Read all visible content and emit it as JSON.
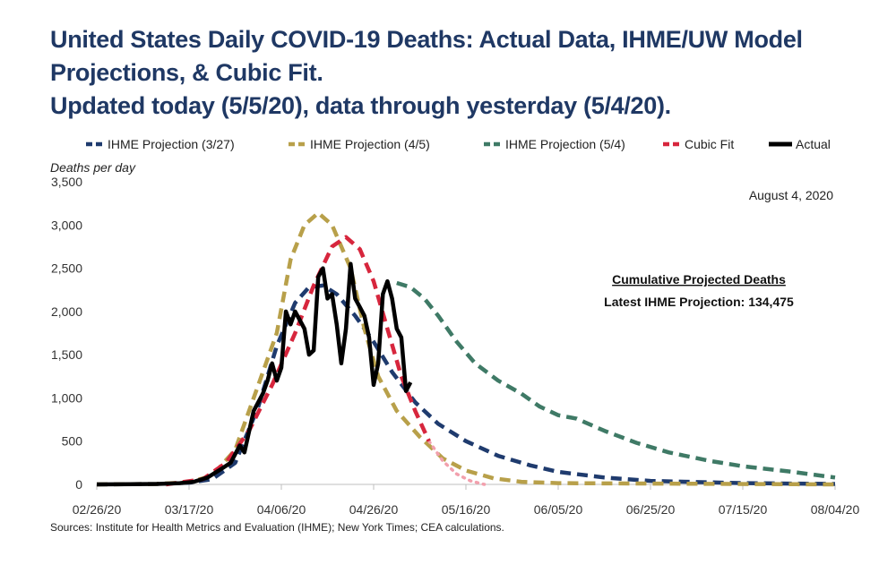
{
  "title_lines": [
    "United States Daily COVID-19 Deaths: Actual Data, IHME/UW Model",
    "Projections, & Cubic Fit.",
    "Updated today (5/5/20), data through yesterday (5/4/20)."
  ],
  "source": "Sources: Institute for Health Metrics and Evaluation (IHME); New York Times; CEA calculations.",
  "date_note": "August 4, 2020",
  "annotation": {
    "heading": "Cumulative Projected Deaths",
    "text": "Latest IHME Projection: 134,475"
  },
  "colors": {
    "ihme_327": "#1f3b6e",
    "ihme_45": "#b8a04a",
    "ihme_54": "#3f7a66",
    "cubic": "#d7263d",
    "cubic_faded": "#f2a0ad",
    "actual": "#000000",
    "title": "#1f3864"
  },
  "chart_data": {
    "type": "line",
    "ylabel": "Deaths per day",
    "ylim": [
      0,
      3500
    ],
    "xlim": [
      "2020-02-26",
      "2020-08-04"
    ],
    "yticks": [
      {
        "value": 0,
        "label": "0"
      },
      {
        "value": 500,
        "label": "500"
      },
      {
        "value": 1000,
        "label": "1,000"
      },
      {
        "value": 1500,
        "label": "1,500"
      },
      {
        "value": 2000,
        "label": "2,000"
      },
      {
        "value": 2500,
        "label": "2,500"
      },
      {
        "value": 3000,
        "label": "3,000"
      },
      {
        "value": 3500,
        "label": "3,500"
      }
    ],
    "xticks": [
      {
        "value": "2020-02-26",
        "label": "02/26/20"
      },
      {
        "value": "2020-03-17",
        "label": "03/17/20"
      },
      {
        "value": "2020-04-06",
        "label": "04/06/20"
      },
      {
        "value": "2020-04-26",
        "label": "04/26/20"
      },
      {
        "value": "2020-05-16",
        "label": "05/16/20"
      },
      {
        "value": "2020-06-05",
        "label": "06/05/20"
      },
      {
        "value": "2020-06-25",
        "label": "06/25/20"
      },
      {
        "value": "2020-07-15",
        "label": "07/15/20"
      },
      {
        "value": "2020-08-04",
        "label": "08/04/20"
      }
    ],
    "legend_position": "top",
    "grid": false,
    "series": [
      {
        "name": "IHME Projection (3/27)",
        "key": "ihme_327",
        "style": "dashed",
        "points": [
          [
            "2020-02-26",
            0
          ],
          [
            "2020-03-10",
            5
          ],
          [
            "2020-03-17",
            20
          ],
          [
            "2020-03-22",
            60
          ],
          [
            "2020-03-27",
            250
          ],
          [
            "2020-04-01",
            900
          ],
          [
            "2020-04-05",
            1600
          ],
          [
            "2020-04-09",
            2100
          ],
          [
            "2020-04-12",
            2280
          ],
          [
            "2020-04-15",
            2300
          ],
          [
            "2020-04-18",
            2200
          ],
          [
            "2020-04-22",
            1950
          ],
          [
            "2020-04-26",
            1650
          ],
          [
            "2020-04-30",
            1300
          ],
          [
            "2020-05-05",
            950
          ],
          [
            "2020-05-10",
            700
          ],
          [
            "2020-05-16",
            500
          ],
          [
            "2020-05-23",
            330
          ],
          [
            "2020-05-30",
            220
          ],
          [
            "2020-06-05",
            145
          ],
          [
            "2020-06-15",
            80
          ],
          [
            "2020-06-25",
            40
          ],
          [
            "2020-07-15",
            15
          ],
          [
            "2020-08-04",
            5
          ]
        ]
      },
      {
        "name": "IHME Projection (4/5)",
        "key": "ihme_45",
        "style": "dashed",
        "points": [
          [
            "2020-02-26",
            0
          ],
          [
            "2020-03-10",
            5
          ],
          [
            "2020-03-17",
            25
          ],
          [
            "2020-03-22",
            100
          ],
          [
            "2020-03-27",
            400
          ],
          [
            "2020-04-01",
            1150
          ],
          [
            "2020-04-05",
            1750
          ],
          [
            "2020-04-08",
            2600
          ],
          [
            "2020-04-11",
            3000
          ],
          [
            "2020-04-14",
            3140
          ],
          [
            "2020-04-17",
            3000
          ],
          [
            "2020-04-21",
            2500
          ],
          [
            "2020-04-24",
            1800
          ],
          [
            "2020-04-27",
            1250
          ],
          [
            "2020-05-01",
            850
          ],
          [
            "2020-05-06",
            550
          ],
          [
            "2020-05-11",
            300
          ],
          [
            "2020-05-16",
            160
          ],
          [
            "2020-05-22",
            70
          ],
          [
            "2020-05-28",
            30
          ],
          [
            "2020-06-05",
            15
          ],
          [
            "2020-08-04",
            0
          ]
        ]
      },
      {
        "name": "IHME Projection (5/4)",
        "key": "ihme_54",
        "style": "dashed",
        "points": [
          [
            "2020-05-01",
            2330
          ],
          [
            "2020-05-04",
            2280
          ],
          [
            "2020-05-07",
            2150
          ],
          [
            "2020-05-10",
            1950
          ],
          [
            "2020-05-14",
            1650
          ],
          [
            "2020-05-18",
            1400
          ],
          [
            "2020-05-23",
            1200
          ],
          [
            "2020-05-28",
            1050
          ],
          [
            "2020-06-01",
            900
          ],
          [
            "2020-06-05",
            800
          ],
          [
            "2020-06-09",
            760
          ],
          [
            "2020-06-15",
            620
          ],
          [
            "2020-06-22",
            480
          ],
          [
            "2020-06-29",
            370
          ],
          [
            "2020-07-08",
            270
          ],
          [
            "2020-07-15",
            210
          ],
          [
            "2020-07-25",
            150
          ],
          [
            "2020-08-04",
            80
          ]
        ]
      },
      {
        "name": "Cubic Fit",
        "key": "cubic",
        "style": "dashed",
        "points": [
          [
            "2020-03-12",
            0
          ],
          [
            "2020-03-20",
            60
          ],
          [
            "2020-03-25",
            250
          ],
          [
            "2020-03-30",
            620
          ],
          [
            "2020-04-04",
            1150
          ],
          [
            "2020-04-09",
            1750
          ],
          [
            "2020-04-13",
            2300
          ],
          [
            "2020-04-17",
            2750
          ],
          [
            "2020-04-20",
            2860
          ],
          [
            "2020-04-23",
            2720
          ],
          [
            "2020-04-26",
            2350
          ],
          [
            "2020-04-29",
            1800
          ],
          [
            "2020-05-02",
            1250
          ],
          [
            "2020-05-05",
            850
          ],
          [
            "2020-05-08",
            500
          ]
        ],
        "extension": [
          [
            "2020-05-08",
            500
          ],
          [
            "2020-05-11",
            270
          ],
          [
            "2020-05-14",
            120
          ],
          [
            "2020-05-17",
            40
          ],
          [
            "2020-05-20",
            0
          ]
        ]
      },
      {
        "name": "Actual",
        "key": "actual",
        "style": "solid",
        "points": [
          [
            "2020-02-26",
            0
          ],
          [
            "2020-03-05",
            2
          ],
          [
            "2020-03-10",
            5
          ],
          [
            "2020-03-15",
            15
          ],
          [
            "2020-03-18",
            30
          ],
          [
            "2020-03-21",
            80
          ],
          [
            "2020-03-24",
            180
          ],
          [
            "2020-03-26",
            250
          ],
          [
            "2020-03-28",
            450
          ],
          [
            "2020-03-29",
            370
          ],
          [
            "2020-03-31",
            850
          ],
          [
            "2020-04-02",
            1050
          ],
          [
            "2020-04-03",
            1200
          ],
          [
            "2020-04-04",
            1400
          ],
          [
            "2020-04-05",
            1200
          ],
          [
            "2020-04-06",
            1350
          ],
          [
            "2020-04-07",
            2000
          ],
          [
            "2020-04-08",
            1850
          ],
          [
            "2020-04-09",
            2000
          ],
          [
            "2020-04-10",
            1900
          ],
          [
            "2020-04-11",
            1800
          ],
          [
            "2020-04-12",
            1500
          ],
          [
            "2020-04-13",
            1550
          ],
          [
            "2020-04-14",
            2400
          ],
          [
            "2020-04-15",
            2500
          ],
          [
            "2020-04-16",
            2150
          ],
          [
            "2020-04-17",
            2200
          ],
          [
            "2020-04-18",
            1850
          ],
          [
            "2020-04-19",
            1400
          ],
          [
            "2020-04-20",
            1800
          ],
          [
            "2020-04-21",
            2550
          ],
          [
            "2020-04-22",
            2150
          ],
          [
            "2020-04-23",
            2050
          ],
          [
            "2020-04-24",
            1950
          ],
          [
            "2020-04-25",
            1700
          ],
          [
            "2020-04-26",
            1150
          ],
          [
            "2020-04-27",
            1400
          ],
          [
            "2020-04-28",
            2200
          ],
          [
            "2020-04-29",
            2350
          ],
          [
            "2020-04-30",
            2150
          ],
          [
            "2020-05-01",
            1800
          ],
          [
            "2020-05-02",
            1700
          ],
          [
            "2020-05-03",
            1080
          ],
          [
            "2020-05-04",
            1180
          ]
        ]
      }
    ]
  }
}
